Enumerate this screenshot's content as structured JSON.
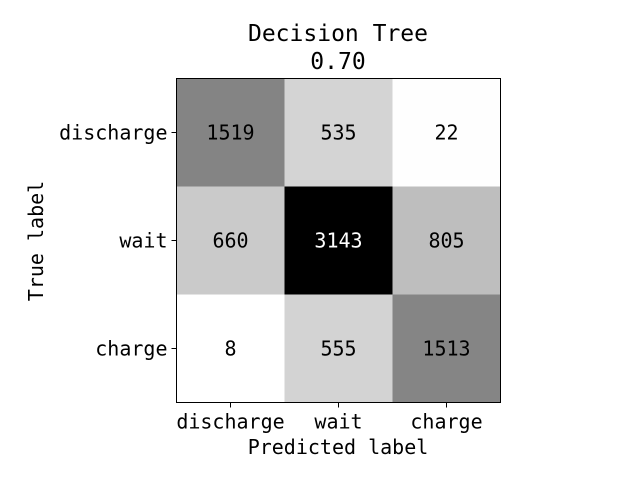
{
  "chart_data": {
    "type": "heatmap",
    "title": "Decision Tree",
    "subtitle": "0.70",
    "xlabel": "Predicted label",
    "ylabel": "True label",
    "x_categories": [
      "discharge",
      "wait",
      "charge"
    ],
    "y_categories": [
      "discharge",
      "wait",
      "charge"
    ],
    "values": [
      [
        1519,
        535,
        22
      ],
      [
        660,
        3143,
        805
      ],
      [
        8,
        555,
        1513
      ]
    ],
    "value_labels": [
      [
        "1519",
        "535",
        "22"
      ],
      [
        "660",
        "3143",
        "805"
      ],
      [
        "8",
        "555",
        "1513"
      ]
    ],
    "colormap": "Greys",
    "vmin": 8,
    "vmax": 3143,
    "grid": false,
    "legend": "none",
    "colors": {
      "background": "#ffffff",
      "axis": "#000000",
      "text_dark": "#000000",
      "text_light": "#ffffff"
    }
  }
}
